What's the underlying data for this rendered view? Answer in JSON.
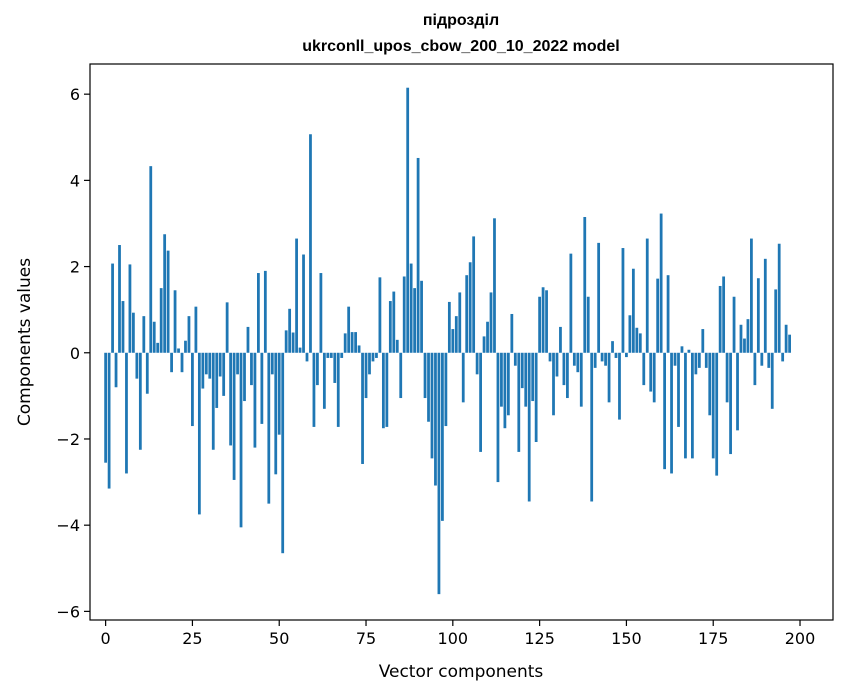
{
  "chart_data": {
    "type": "bar",
    "title_lines": [
      "підрозділ",
      "ukrconll_upos_cbow_200_10_2022 model"
    ],
    "xlabel": "Vector components",
    "ylabel": "Components values",
    "xlim": [
      -4.5,
      209.5
    ],
    "ylim": [
      -6.2,
      6.7
    ],
    "xticks": [
      0,
      25,
      50,
      75,
      100,
      125,
      150,
      175,
      200
    ],
    "xtick_labels": [
      "0",
      "25",
      "50",
      "75",
      "100",
      "125",
      "150",
      "175",
      "200"
    ],
    "yticks": [
      -6,
      -4,
      -2,
      0,
      2,
      4,
      6
    ],
    "ytick_labels": [
      "−6",
      "−4",
      "−2",
      "0",
      "2",
      "4",
      "6"
    ],
    "grid": false,
    "bar_color": "#1f77b4",
    "values": [
      -2.55,
      -3.15,
      2.07,
      -0.8,
      2.5,
      1.2,
      -2.8,
      2.05,
      0.93,
      -0.6,
      -2.25,
      0.85,
      -0.95,
      4.33,
      0.72,
      0.23,
      1.5,
      2.75,
      2.37,
      -0.45,
      1.45,
      0.1,
      -0.45,
      0.28,
      0.85,
      -1.7,
      1.07,
      -3.75,
      -0.83,
      -0.5,
      -0.6,
      -2.25,
      -1.28,
      -0.55,
      -1.0,
      1.17,
      -2.15,
      -2.95,
      -0.5,
      -4.05,
      -1.12,
      0.6,
      -0.75,
      -2.2,
      1.85,
      -1.65,
      1.9,
      -3.5,
      -0.5,
      -2.82,
      -1.9,
      -4.65,
      0.52,
      1.02,
      0.47,
      2.65,
      0.12,
      2.28,
      -0.2,
      5.07,
      -1.72,
      -0.75,
      1.85,
      -1.3,
      -0.12,
      -0.12,
      -0.7,
      -1.72,
      -0.12,
      0.45,
      1.07,
      0.48,
      0.48,
      0.17,
      -2.58,
      -1.05,
      -0.5,
      -0.2,
      -0.12,
      1.75,
      -1.75,
      -1.72,
      1.2,
      1.42,
      0.3,
      -1.05,
      1.77,
      6.15,
      2.07,
      1.5,
      4.52,
      1.67,
      -1.05,
      -1.6,
      -2.45,
      -3.08,
      -5.6,
      -3.9,
      -1.7,
      1.18,
      0.55,
      0.85,
      1.4,
      -1.15,
      1.8,
      2.1,
      2.7,
      -0.5,
      -2.3,
      0.38,
      0.72,
      1.4,
      3.12,
      -3.0,
      -1.25,
      -1.75,
      -1.45,
      0.9,
      -0.3,
      -2.3,
      -0.82,
      -1.25,
      -3.45,
      -1.12,
      -2.07,
      1.3,
      1.52,
      1.45,
      -0.2,
      -1.45,
      -0.55,
      0.6,
      -0.75,
      -1.05,
      2.3,
      -0.3,
      -0.45,
      -1.25,
      3.15,
      1.3,
      -3.45,
      -0.35,
      2.55,
      -0.2,
      -0.3,
      -1.15,
      0.27,
      -0.12,
      -1.55,
      2.43,
      -0.1,
      0.87,
      1.95,
      0.58,
      0.45,
      -0.75,
      2.65,
      -0.9,
      -1.15,
      1.72,
      3.23,
      -2.7,
      1.8,
      -2.8,
      -0.3,
      -1.72,
      0.15,
      -2.45,
      0.07,
      -2.45,
      -0.5,
      -0.35,
      0.55,
      -0.35,
      -1.45,
      -2.45,
      -2.85,
      1.55,
      1.77,
      -1.15,
      -2.35,
      1.3,
      -1.8,
      0.65,
      0.33,
      0.78,
      2.65,
      -0.75,
      1.73,
      -0.3,
      2.18,
      -0.35,
      -1.3,
      1.47,
      2.53,
      -0.2,
      0.65,
      0.42
    ]
  }
}
